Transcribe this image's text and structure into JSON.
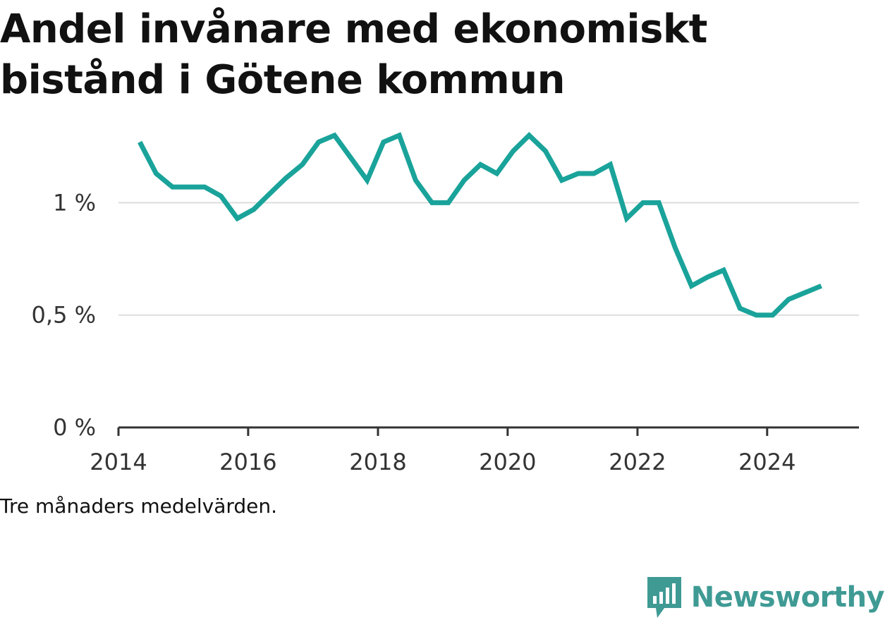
{
  "chart_data": {
    "type": "line",
    "title": "Andel invånare med ekonomiskt bistånd i Götene kommun",
    "caption": "Tre månaders medelvärden.",
    "xlabel": "",
    "ylabel": "",
    "x_ticks": [
      "2014",
      "2016",
      "2018",
      "2020",
      "2022",
      "2024"
    ],
    "y_ticks": [
      {
        "value": 0,
        "label": "0 %"
      },
      {
        "value": 0.5,
        "label": "0,5 %"
      },
      {
        "value": 1,
        "label": "1 %"
      }
    ],
    "xlim": [
      "2014-01-01",
      "2025-06-01"
    ],
    "ylim": [
      0,
      1.4
    ],
    "y_unit": "%",
    "grid": "horizontal",
    "legend": "none",
    "color": "#1aa39a",
    "series": [
      {
        "x": [
          "2014-05-01",
          "2014-08-01",
          "2014-11-01",
          "2015-02-01",
          "2015-05-01",
          "2015-08-01",
          "2015-11-01",
          "2016-02-01",
          "2016-05-01",
          "2016-08-01",
          "2016-11-01",
          "2017-02-01",
          "2017-05-01",
          "2017-08-01",
          "2017-11-01",
          "2018-02-01",
          "2018-05-01",
          "2018-08-01",
          "2018-11-01",
          "2019-02-01",
          "2019-05-01",
          "2019-08-01",
          "2019-11-01",
          "2020-02-01",
          "2020-05-01",
          "2020-08-01",
          "2020-11-01",
          "2021-02-01",
          "2021-05-01",
          "2021-08-01",
          "2021-11-01",
          "2022-02-01",
          "2022-05-01",
          "2022-08-01",
          "2022-11-01",
          "2023-02-01",
          "2023-05-01",
          "2023-08-01",
          "2023-11-01",
          "2024-02-01",
          "2024-05-01",
          "2024-08-01",
          "2024-11-01"
        ],
        "values": [
          1.27,
          1.13,
          1.07,
          1.07,
          1.07,
          1.03,
          0.93,
          0.97,
          1.04,
          1.11,
          1.17,
          1.27,
          1.3,
          1.2,
          1.1,
          1.27,
          1.3,
          1.1,
          1.0,
          1.0,
          1.1,
          1.17,
          1.13,
          1.23,
          1.3,
          1.23,
          1.1,
          1.13,
          1.13,
          1.17,
          0.93,
          1.0,
          1.0,
          0.8,
          0.63,
          0.67,
          0.7,
          0.53,
          0.5,
          0.5,
          0.57,
          0.6,
          0.63
        ]
      }
    ]
  },
  "brand": {
    "name": "Newsworthy",
    "icon": "newsworthy-logo-icon",
    "color": "#3f9a94"
  }
}
